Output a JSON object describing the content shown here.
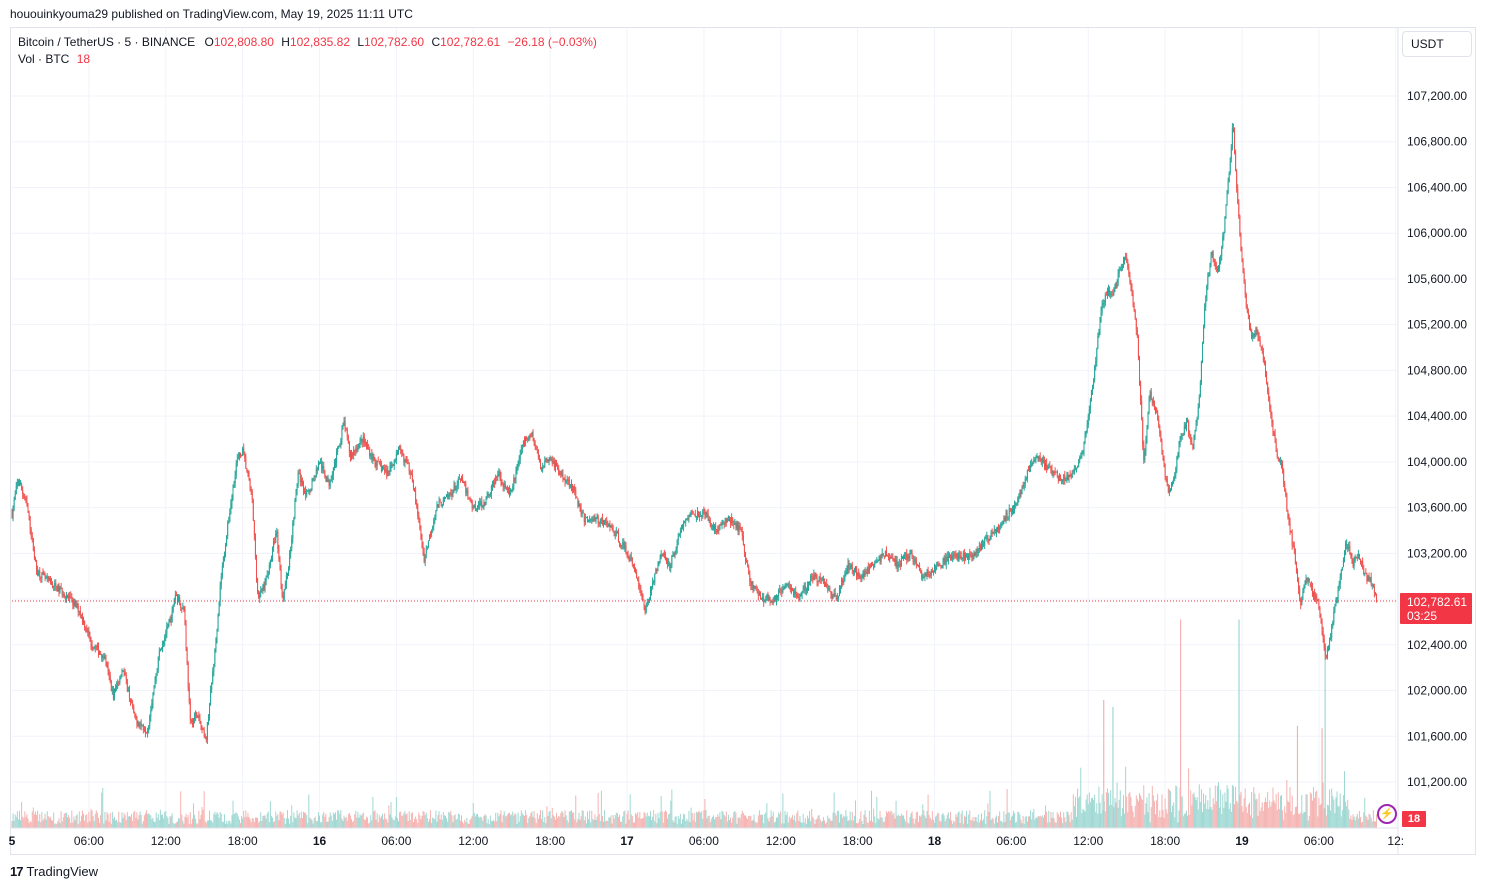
{
  "header": {
    "published_by": "hououinkyouma29 published on TradingView.com, May 19, 2025 11:11 UTC"
  },
  "legend": {
    "symbol": "Bitcoin / TetherUS · 5 · BINANCE",
    "open_label": "O",
    "open": "102,808.80",
    "high_label": "H",
    "high": "102,835.82",
    "low_label": "L",
    "low": "102,782.60",
    "close_label": "C",
    "close": "102,782.61",
    "change": "−26.18 (−0.03%)",
    "vol_label": "Vol · BTC",
    "vol_value": "18"
  },
  "price_axis": {
    "unit": "USDT",
    "current_price": "102,782.61",
    "countdown": "03:25",
    "volume_tag": "18"
  },
  "footer": {
    "brand": "TradingView"
  },
  "colors": {
    "up": "#26a69a",
    "down": "#ef5350",
    "up_vol": "#9fd8d3",
    "down_vol": "#f5b3b1",
    "accent": "#f23645",
    "grid": "#f0f3fa"
  },
  "chart_data": {
    "type": "candlestick",
    "symbol": "BTCUSDT",
    "interval": "5",
    "yticks": [
      101200,
      101600,
      102000,
      102400,
      102800,
      103200,
      103600,
      104000,
      104400,
      104800,
      105200,
      105600,
      106000,
      106400,
      106800,
      107200
    ],
    "ytick_labels": [
      "101,200.00",
      "101,600.00",
      "102,000.00",
      "102,400.00",
      "102,800.00",
      "103,200.00",
      "103,600.00",
      "104,000.00",
      "104,400.00",
      "104,800.00",
      "105,200.00",
      "105,600.00",
      "106,000.00",
      "106,400.00",
      "106,800.00",
      "107,200.00"
    ],
    "xticks": [
      {
        "label": "5",
        "day_frac": 0.0
      },
      {
        "label": "06:00",
        "day_frac": 0.25
      },
      {
        "label": "12:00",
        "day_frac": 0.5
      },
      {
        "label": "18:00",
        "day_frac": 0.75
      },
      {
        "label": "16",
        "day_frac": 1.0
      },
      {
        "label": "06:00",
        "day_frac": 1.25
      },
      {
        "label": "12:00",
        "day_frac": 1.5
      },
      {
        "label": "18:00",
        "day_frac": 1.75
      },
      {
        "label": "17",
        "day_frac": 2.0
      },
      {
        "label": "06:00",
        "day_frac": 2.25
      },
      {
        "label": "12:00",
        "day_frac": 2.5
      },
      {
        "label": "18:00",
        "day_frac": 2.75
      },
      {
        "label": "18",
        "day_frac": 3.0
      },
      {
        "label": "06:00",
        "day_frac": 3.25
      },
      {
        "label": "12:00",
        "day_frac": 3.5
      },
      {
        "label": "18:00",
        "day_frac": 3.75
      },
      {
        "label": "19",
        "day_frac": 4.0
      },
      {
        "label": "06:00",
        "day_frac": 4.25
      },
      {
        "label": "12:",
        "day_frac": 4.5
      }
    ],
    "path_points": [
      [
        0.0,
        103550
      ],
      [
        0.02,
        103850
      ],
      [
        0.05,
        103600
      ],
      [
        0.08,
        103050
      ],
      [
        0.12,
        102950
      ],
      [
        0.17,
        102850
      ],
      [
        0.22,
        102700
      ],
      [
        0.26,
        102400
      ],
      [
        0.3,
        102300
      ],
      [
        0.33,
        101950
      ],
      [
        0.36,
        102200
      ],
      [
        0.4,
        101750
      ],
      [
        0.44,
        101650
      ],
      [
        0.48,
        102350
      ],
      [
        0.52,
        102650
      ],
      [
        0.53,
        102850
      ],
      [
        0.56,
        102700
      ],
      [
        0.58,
        101700
      ],
      [
        0.6,
        101800
      ],
      [
        0.63,
        101550
      ],
      [
        0.66,
        102350
      ],
      [
        0.68,
        103000
      ],
      [
        0.7,
        103400
      ],
      [
        0.73,
        104000
      ],
      [
        0.75,
        104100
      ],
      [
        0.78,
        103700
      ],
      [
        0.8,
        102800
      ],
      [
        0.83,
        103000
      ],
      [
        0.86,
        103400
      ],
      [
        0.88,
        102800
      ],
      [
        0.9,
        103100
      ],
      [
        0.93,
        103900
      ],
      [
        0.96,
        103700
      ],
      [
        1.0,
        104000
      ],
      [
        1.03,
        103800
      ],
      [
        1.06,
        104100
      ],
      [
        1.08,
        104350
      ],
      [
        1.1,
        104050
      ],
      [
        1.14,
        104200
      ],
      [
        1.18,
        104000
      ],
      [
        1.22,
        103900
      ],
      [
        1.26,
        104100
      ],
      [
        1.3,
        103900
      ],
      [
        1.34,
        103150
      ],
      [
        1.38,
        103600
      ],
      [
        1.42,
        103700
      ],
      [
        1.46,
        103850
      ],
      [
        1.5,
        103600
      ],
      [
        1.54,
        103650
      ],
      [
        1.58,
        103900
      ],
      [
        1.62,
        103700
      ],
      [
        1.66,
        104150
      ],
      [
        1.69,
        104250
      ],
      [
        1.72,
        103950
      ],
      [
        1.75,
        104050
      ],
      [
        1.78,
        103900
      ],
      [
        1.82,
        103800
      ],
      [
        1.86,
        103500
      ],
      [
        1.9,
        103500
      ],
      [
        1.94,
        103450
      ],
      [
        1.98,
        103300
      ],
      [
        2.02,
        103100
      ],
      [
        2.06,
        102700
      ],
      [
        2.08,
        102900
      ],
      [
        2.11,
        103200
      ],
      [
        2.14,
        103100
      ],
      [
        2.18,
        103450
      ],
      [
        2.21,
        103550
      ],
      [
        2.25,
        103550
      ],
      [
        2.29,
        103400
      ],
      [
        2.33,
        103500
      ],
      [
        2.37,
        103400
      ],
      [
        2.4,
        102950
      ],
      [
        2.44,
        102800
      ],
      [
        2.48,
        102800
      ],
      [
        2.52,
        102950
      ],
      [
        2.56,
        102800
      ],
      [
        2.6,
        103000
      ],
      [
        2.64,
        102950
      ],
      [
        2.68,
        102800
      ],
      [
        2.72,
        103100
      ],
      [
        2.76,
        103000
      ],
      [
        2.8,
        103100
      ],
      [
        2.84,
        103200
      ],
      [
        2.88,
        103100
      ],
      [
        2.92,
        103200
      ],
      [
        2.96,
        103000
      ],
      [
        3.0,
        103050
      ],
      [
        3.04,
        103150
      ],
      [
        3.08,
        103200
      ],
      [
        3.12,
        103150
      ],
      [
        3.16,
        103300
      ],
      [
        3.2,
        103400
      ],
      [
        3.24,
        103550
      ],
      [
        3.27,
        103650
      ],
      [
        3.3,
        103900
      ],
      [
        3.33,
        104050
      ],
      [
        3.37,
        103950
      ],
      [
        3.41,
        103850
      ],
      [
        3.45,
        103900
      ],
      [
        3.48,
        104050
      ],
      [
        3.5,
        104400
      ],
      [
        3.52,
        104800
      ],
      [
        3.54,
        105300
      ],
      [
        3.56,
        105500
      ],
      [
        3.58,
        105450
      ],
      [
        3.6,
        105650
      ],
      [
        3.62,
        105800
      ],
      [
        3.64,
        105500
      ],
      [
        3.66,
        105100
      ],
      [
        3.68,
        104000
      ],
      [
        3.7,
        104600
      ],
      [
        3.72,
        104450
      ],
      [
        3.74,
        104100
      ],
      [
        3.76,
        103700
      ],
      [
        3.78,
        103900
      ],
      [
        3.8,
        104200
      ],
      [
        3.82,
        104350
      ],
      [
        3.84,
        104100
      ],
      [
        3.86,
        104500
      ],
      [
        3.88,
        105400
      ],
      [
        3.9,
        105850
      ],
      [
        3.92,
        105650
      ],
      [
        3.94,
        106000
      ],
      [
        3.96,
        106600
      ],
      [
        3.97,
        106950
      ],
      [
        3.99,
        106100
      ],
      [
        4.01,
        105450
      ],
      [
        4.03,
        105100
      ],
      [
        4.05,
        105150
      ],
      [
        4.07,
        104900
      ],
      [
        4.09,
        104500
      ],
      [
        4.11,
        104100
      ],
      [
        4.13,
        103950
      ],
      [
        4.15,
        103500
      ],
      [
        4.17,
        103200
      ],
      [
        4.19,
        102750
      ],
      [
        4.21,
        103000
      ],
      [
        4.23,
        102850
      ],
      [
        4.25,
        102750
      ],
      [
        4.27,
        102300
      ],
      [
        4.28,
        102350
      ],
      [
        4.3,
        102700
      ],
      [
        4.32,
        103000
      ],
      [
        4.34,
        103300
      ],
      [
        4.36,
        103100
      ],
      [
        4.38,
        103200
      ],
      [
        4.4,
        103000
      ],
      [
        4.42,
        102950
      ],
      [
        4.44,
        102800
      ]
    ],
    "last_price": 102782.61,
    "volume_spikes": [
      {
        "day": 3.8,
        "value": "high",
        "color": "down"
      },
      {
        "day": 3.99,
        "value": "high",
        "color": "up"
      },
      {
        "day": 4.27,
        "value": "high",
        "color": "up"
      },
      {
        "day": 3.58,
        "value": "mid",
        "color": "up"
      },
      {
        "day": 3.55,
        "value": "mid",
        "color": "down"
      },
      {
        "day": 4.18,
        "value": "mid",
        "color": "down"
      },
      {
        "day": 4.26,
        "value": "mid",
        "color": "down"
      }
    ]
  }
}
